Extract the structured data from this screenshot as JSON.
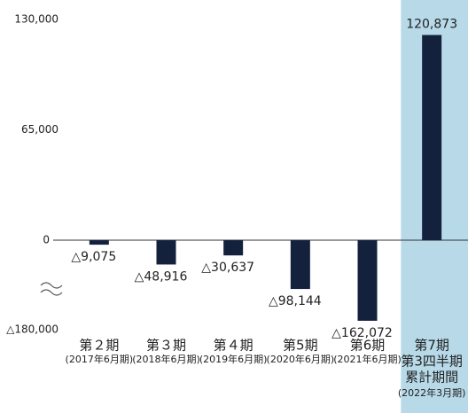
{
  "chart_data": {
    "type": "bar",
    "categories": [
      [
        "第２期",
        "(2017年6月期)"
      ],
      [
        "第３期",
        "(2018年6月期)"
      ],
      [
        "第４期",
        "(2019年6月期)"
      ],
      [
        "第5期",
        "(2020年6月期)"
      ],
      [
        "第6期",
        "(2021年6月期)"
      ],
      [
        "第7期",
        "第3四半期",
        "累計期間",
        "(2022年3月期)"
      ]
    ],
    "values": [
      -9075,
      -48916,
      -30637,
      -98144,
      -162072,
      120873
    ],
    "value_labels": [
      "△9,075",
      "△48,916",
      "△30,637",
      "△98,144",
      "△162,072",
      "120,873"
    ],
    "color": "#14213d",
    "highlight_color": "#b7d9e8",
    "ylim": [
      -180000,
      130000
    ],
    "yticks": [
      {
        "value": 130000,
        "label": "130,000"
      },
      {
        "value": 65000,
        "label": "65,000"
      },
      0,
      {
        "value": -180000,
        "label": "△180,000"
      }
    ],
    "grid": false
  }
}
